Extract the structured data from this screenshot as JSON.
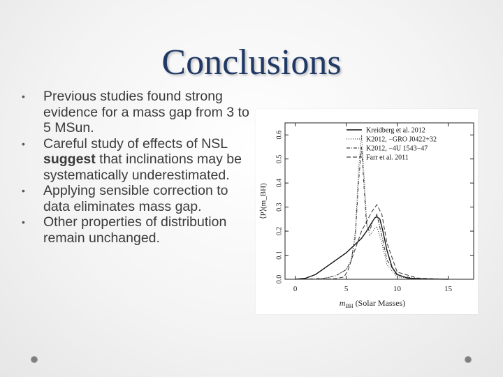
{
  "slide": {
    "title": "Conclusions",
    "bullets": [
      {
        "parts": [
          {
            "text": "Previous studies found strong evidence for a mass gap from 3 to 5 MSun.",
            "bold": false
          }
        ]
      },
      {
        "parts": [
          {
            "text": "Careful study of effects of NSL ",
            "bold": false
          },
          {
            "text": "suggest",
            "bold": true
          },
          {
            "text": " that inclinations may be systematically underestimated.",
            "bold": false
          }
        ]
      },
      {
        "parts": [
          {
            "text": "Applying sensible correction to data eliminates mass gap.",
            "bold": false
          }
        ]
      },
      {
        "parts": [
          {
            "text": "Other properties of distribution remain unchanged.",
            "bold": false
          }
        ]
      }
    ],
    "bullet_glyph": "•"
  },
  "chart_data": {
    "type": "line",
    "xlabel_main": "m",
    "xlabel_sub": "BH",
    "xlabel_rest": " (Solar Masses)",
    "ylabel": "⟨P⟩(m_BH)",
    "xlim": [
      -1,
      17.5
    ],
    "ylim": [
      0,
      0.65
    ],
    "xticks": [
      0,
      5,
      10,
      15
    ],
    "yticks": [
      0.0,
      0.1,
      0.2,
      0.3,
      0.4,
      0.5,
      0.6
    ],
    "ytick_labels": [
      "0.0",
      "0.1",
      "0.2",
      "0.3",
      "0.4",
      "0.5",
      "0.6"
    ],
    "legend_position": "top-right",
    "series": [
      {
        "name": "Kreidberg et al. 2012",
        "dash": "",
        "x": [
          0,
          1,
          2,
          3,
          4,
          5,
          5.5,
          6,
          6.5,
          7,
          7.5,
          7.8,
          8,
          8.3,
          8.6,
          9,
          9.5,
          10,
          11,
          12,
          15
        ],
        "y": [
          0.0,
          0.004,
          0.02,
          0.05,
          0.08,
          0.11,
          0.13,
          0.15,
          0.17,
          0.2,
          0.235,
          0.255,
          0.26,
          0.25,
          0.2,
          0.12,
          0.05,
          0.02,
          0.005,
          0.002,
          0.0
        ]
      },
      {
        "name": "K2012, −GRO J0422+32",
        "dash": "1,2",
        "x": [
          0,
          2,
          3,
          4,
          5,
          5.5,
          5.9,
          6.2,
          6.5,
          6.8,
          7,
          7.3,
          7.6,
          8,
          8.5,
          9,
          10,
          12,
          15
        ],
        "y": [
          0.0,
          0.002,
          0.005,
          0.015,
          0.04,
          0.08,
          0.2,
          0.45,
          0.6,
          0.4,
          0.25,
          0.18,
          0.2,
          0.22,
          0.15,
          0.06,
          0.01,
          0.002,
          0.0
        ]
      },
      {
        "name": "K2012, −4U 1543−47",
        "dash": "5,2,1,2",
        "x": [
          0,
          2,
          3,
          4,
          5,
          5.5,
          5.9,
          6.2,
          6.5,
          6.8,
          7,
          7.3,
          7.6,
          8,
          8.5,
          9,
          10,
          12,
          15
        ],
        "y": [
          0.0,
          0.002,
          0.005,
          0.015,
          0.04,
          0.08,
          0.18,
          0.4,
          0.55,
          0.35,
          0.22,
          0.2,
          0.24,
          0.27,
          0.18,
          0.08,
          0.015,
          0.003,
          0.0
        ]
      },
      {
        "name": "Farr et al. 2011",
        "dash": "6,3",
        "x": [
          0,
          2,
          3,
          4,
          4.8,
          5.2,
          5.5,
          6,
          6.5,
          7,
          7.5,
          8,
          8.5,
          9,
          10,
          12,
          15
        ],
        "y": [
          0.0,
          0.0,
          0.001,
          0.003,
          0.01,
          0.04,
          0.08,
          0.14,
          0.2,
          0.24,
          0.28,
          0.31,
          0.27,
          0.15,
          0.03,
          0.005,
          0.0
        ]
      }
    ]
  }
}
